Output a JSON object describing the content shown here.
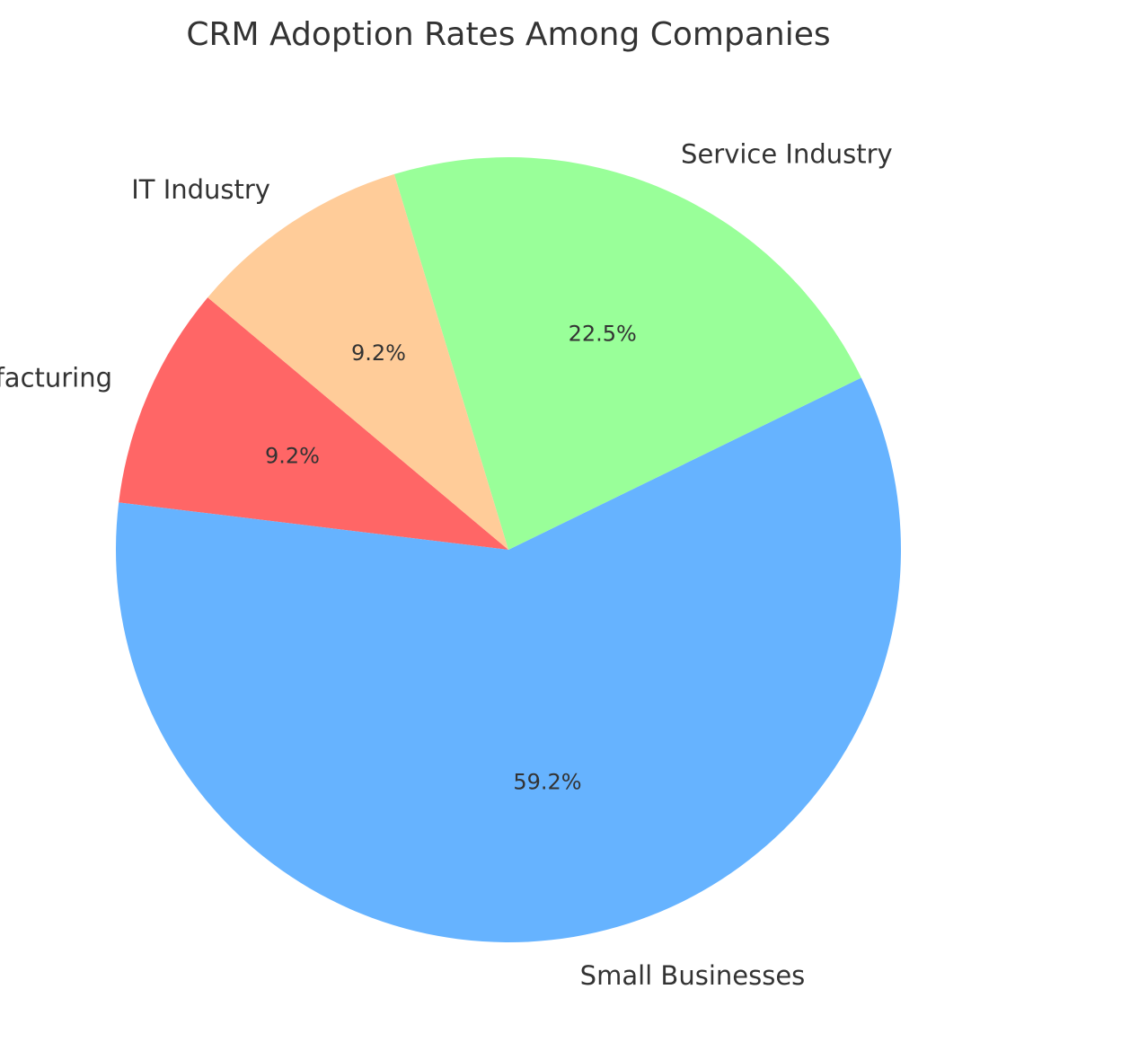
{
  "chart_data": {
    "type": "pie",
    "title": "CRM Adoption Rates Among Companies",
    "start_angle_deg": 140,
    "direction": "counterclockwise",
    "slices": [
      {
        "label": "Manufacturing",
        "value": 9.2,
        "pct_label": "9.2%",
        "color": "#ff6666"
      },
      {
        "label": "Small Businesses",
        "value": 59.2,
        "pct_label": "59.2%",
        "color": "#66b3ff"
      },
      {
        "label": "Service Industry",
        "value": 22.5,
        "pct_label": "22.5%",
        "color": "#99ff99"
      },
      {
        "label": "IT Industry",
        "value": 9.2,
        "pct_label": "9.2%",
        "color": "#ffcc99"
      }
    ],
    "legend": "none",
    "grid": false
  }
}
